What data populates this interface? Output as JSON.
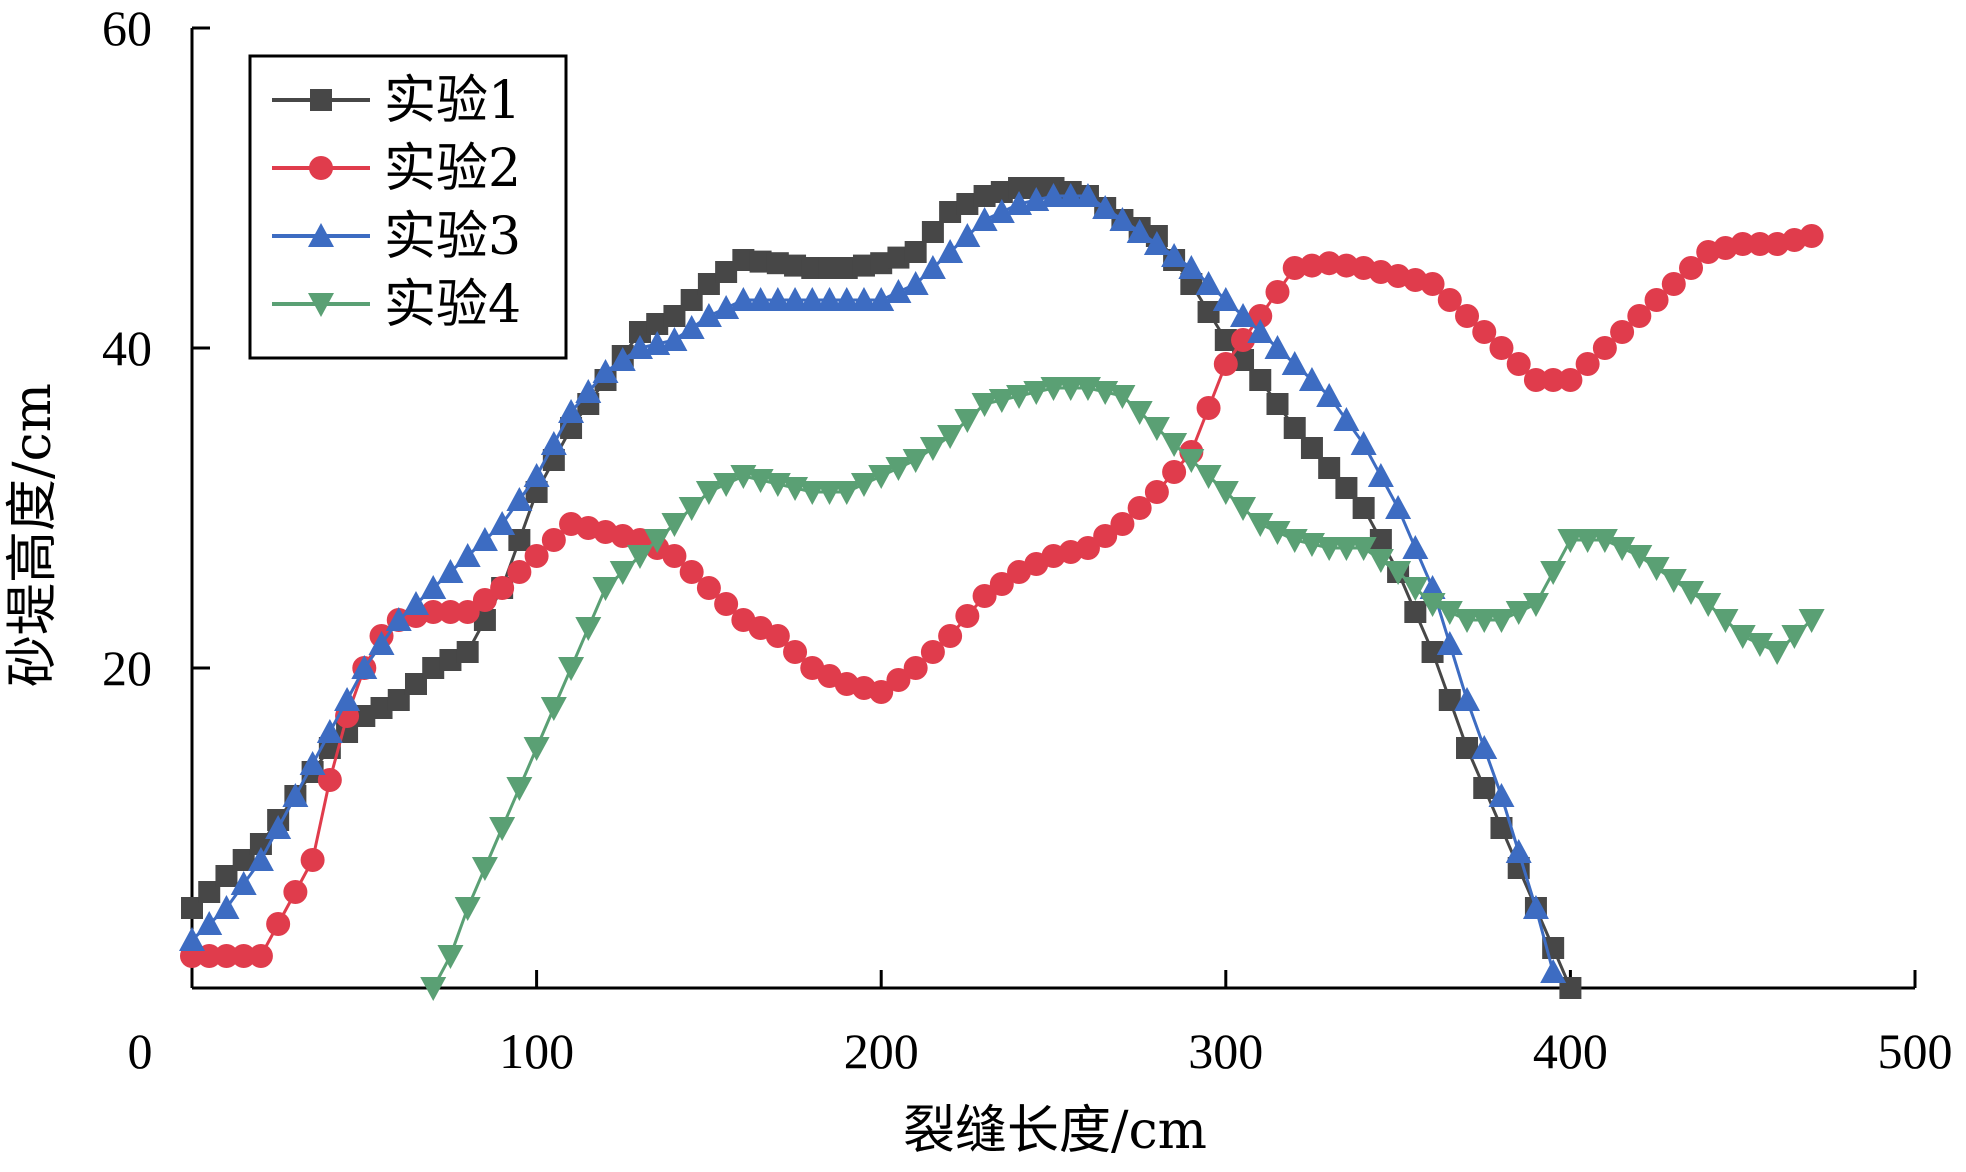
{
  "chart_data": {
    "type": "line",
    "xlabel": "裂缝长度/cm",
    "ylabel": "砂堤高度/cm",
    "xlim": [
      0,
      500
    ],
    "ylim": [
      0,
      60
    ],
    "x_ticks": [
      "0",
      "100",
      "200",
      "300",
      "400",
      "500"
    ],
    "y_ticks": [
      "20",
      "40",
      "60"
    ],
    "legend_position": "top-left",
    "grid": false,
    "series": [
      {
        "name": "实验1",
        "color": "#474747",
        "marker": "square",
        "points": [
          [
            0,
            5
          ],
          [
            5,
            6
          ],
          [
            10,
            7
          ],
          [
            20,
            9
          ],
          [
            30,
            12
          ],
          [
            40,
            15
          ],
          [
            50,
            17
          ],
          [
            60,
            18
          ],
          [
            70,
            20
          ],
          [
            80,
            21
          ],
          [
            90,
            25
          ],
          [
            100,
            31
          ],
          [
            110,
            35
          ],
          [
            120,
            38
          ],
          [
            130,
            41
          ],
          [
            140,
            42
          ],
          [
            150,
            44
          ],
          [
            160,
            45.5
          ],
          [
            170,
            45.3
          ],
          [
            180,
            45
          ],
          [
            190,
            45
          ],
          [
            200,
            45.3
          ],
          [
            210,
            46
          ],
          [
            220,
            48.5
          ],
          [
            230,
            49.5
          ],
          [
            240,
            50
          ],
          [
            250,
            50
          ],
          [
            260,
            49.5
          ],
          [
            270,
            48
          ],
          [
            280,
            47
          ],
          [
            290,
            44
          ],
          [
            300,
            40.5
          ],
          [
            310,
            38
          ],
          [
            320,
            35
          ],
          [
            330,
            32.5
          ],
          [
            340,
            30
          ],
          [
            350,
            26
          ],
          [
            360,
            21
          ],
          [
            370,
            15
          ],
          [
            380,
            10
          ],
          [
            390,
            5
          ],
          [
            400,
            0
          ]
        ]
      },
      {
        "name": "实验2",
        "color": "#e03c4c",
        "marker": "circle",
        "points": [
          [
            0,
            2
          ],
          [
            5,
            2
          ],
          [
            10,
            2
          ],
          [
            20,
            2
          ],
          [
            25,
            4
          ],
          [
            30,
            6
          ],
          [
            35,
            8
          ],
          [
            40,
            13
          ],
          [
            45,
            17
          ],
          [
            50,
            20
          ],
          [
            55,
            22
          ],
          [
            60,
            23
          ],
          [
            70,
            23.5
          ],
          [
            80,
            23.5
          ],
          [
            90,
            25
          ],
          [
            100,
            27
          ],
          [
            110,
            29
          ],
          [
            120,
            28.5
          ],
          [
            130,
            28
          ],
          [
            140,
            27
          ],
          [
            150,
            25
          ],
          [
            160,
            23
          ],
          [
            170,
            22
          ],
          [
            180,
            20
          ],
          [
            190,
            19
          ],
          [
            200,
            18.5
          ],
          [
            210,
            20
          ],
          [
            220,
            22
          ],
          [
            230,
            24.5
          ],
          [
            240,
            26
          ],
          [
            250,
            27
          ],
          [
            260,
            27.5
          ],
          [
            270,
            29
          ],
          [
            280,
            31
          ],
          [
            290,
            33.5
          ],
          [
            300,
            39
          ],
          [
            310,
            42
          ],
          [
            320,
            45
          ],
          [
            330,
            45.3
          ],
          [
            340,
            45
          ],
          [
            350,
            44.5
          ],
          [
            360,
            44
          ],
          [
            370,
            42
          ],
          [
            380,
            40
          ],
          [
            390,
            38
          ],
          [
            400,
            38
          ],
          [
            410,
            40
          ],
          [
            420,
            42
          ],
          [
            430,
            44
          ],
          [
            440,
            46
          ],
          [
            450,
            46.5
          ],
          [
            460,
            46.5
          ],
          [
            470,
            47
          ]
        ]
      },
      {
        "name": "实验3",
        "color": "#3d6cc2",
        "marker": "triangle-up",
        "points": [
          [
            0,
            3
          ],
          [
            5,
            4
          ],
          [
            10,
            5
          ],
          [
            20,
            8
          ],
          [
            30,
            12
          ],
          [
            40,
            16
          ],
          [
            50,
            20
          ],
          [
            60,
            23
          ],
          [
            70,
            25
          ],
          [
            80,
            27
          ],
          [
            90,
            29
          ],
          [
            100,
            32
          ],
          [
            110,
            36
          ],
          [
            120,
            38.5
          ],
          [
            130,
            40
          ],
          [
            140,
            40.5
          ],
          [
            150,
            42
          ],
          [
            160,
            43
          ],
          [
            170,
            43
          ],
          [
            180,
            43
          ],
          [
            190,
            43
          ],
          [
            200,
            43
          ],
          [
            210,
            44
          ],
          [
            220,
            46
          ],
          [
            230,
            48
          ],
          [
            240,
            49
          ],
          [
            250,
            49.5
          ],
          [
            260,
            49.5
          ],
          [
            270,
            48
          ],
          [
            280,
            46.5
          ],
          [
            290,
            45
          ],
          [
            300,
            43
          ],
          [
            310,
            41
          ],
          [
            320,
            39
          ],
          [
            330,
            37
          ],
          [
            340,
            34
          ],
          [
            350,
            30
          ],
          [
            360,
            25
          ],
          [
            370,
            18
          ],
          [
            380,
            12
          ],
          [
            390,
            5
          ],
          [
            395,
            1
          ]
        ]
      },
      {
        "name": "实验4",
        "color": "#5aa074",
        "marker": "triangle-down",
        "points": [
          [
            70,
            0
          ],
          [
            75,
            2
          ],
          [
            80,
            5
          ],
          [
            90,
            10
          ],
          [
            100,
            15
          ],
          [
            110,
            20
          ],
          [
            120,
            25
          ],
          [
            130,
            27
          ],
          [
            140,
            29
          ],
          [
            150,
            31
          ],
          [
            160,
            32
          ],
          [
            170,
            31.5
          ],
          [
            180,
            31
          ],
          [
            190,
            31
          ],
          [
            200,
            32
          ],
          [
            210,
            33
          ],
          [
            220,
            34.5
          ],
          [
            230,
            36.5
          ],
          [
            240,
            37
          ],
          [
            250,
            37.5
          ],
          [
            260,
            37.5
          ],
          [
            270,
            37
          ],
          [
            280,
            35
          ],
          [
            290,
            33
          ],
          [
            300,
            31
          ],
          [
            310,
            29
          ],
          [
            320,
            28
          ],
          [
            330,
            27.5
          ],
          [
            340,
            27.5
          ],
          [
            350,
            26
          ],
          [
            360,
            24
          ],
          [
            370,
            23
          ],
          [
            380,
            23
          ],
          [
            390,
            24
          ],
          [
            400,
            28
          ],
          [
            410,
            28
          ],
          [
            420,
            27
          ],
          [
            430,
            25.5
          ],
          [
            440,
            24
          ],
          [
            450,
            22
          ],
          [
            460,
            21
          ],
          [
            470,
            23
          ]
        ]
      }
    ]
  }
}
